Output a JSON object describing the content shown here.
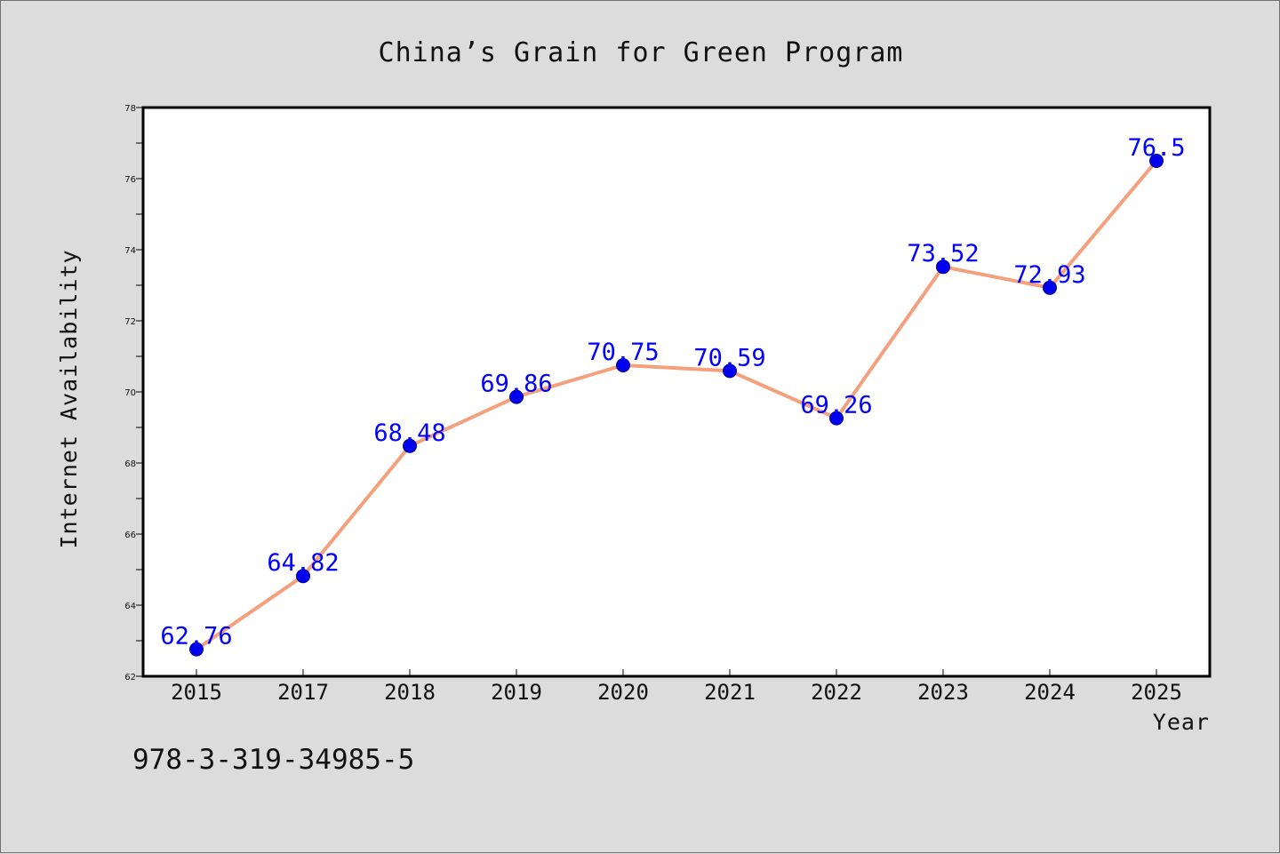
{
  "chart_data": {
    "type": "line",
    "title": "China’s Grain for Green Program",
    "xlabel": "Year",
    "ylabel": "Internet Availability",
    "categories": [
      "2015",
      "2017",
      "2018",
      "2019",
      "2020",
      "2021",
      "2022",
      "2023",
      "2024",
      "2025"
    ],
    "series": [
      {
        "values": [
          62.76,
          64.82,
          68.48,
          69.86,
          70.75,
          70.59,
          69.26,
          73.52,
          72.93,
          76.5
        ],
        "line_color": "#f4a07c",
        "marker_color": "#0000ee",
        "label_color": "#0000ff"
      }
    ],
    "data_labels": [
      "62.76",
      "64.82",
      "68.48",
      "69.86",
      "70.75",
      "70.59",
      "69.26",
      "73.52",
      "72.93",
      "76.5"
    ],
    "ylim": [
      62,
      78
    ],
    "yticks": [
      "62",
      "64",
      "66",
      "68",
      "70",
      "72",
      "74",
      "76",
      "78"
    ],
    "grid": false,
    "legend": "none"
  },
  "footnote": "978-3-319-34985-5"
}
